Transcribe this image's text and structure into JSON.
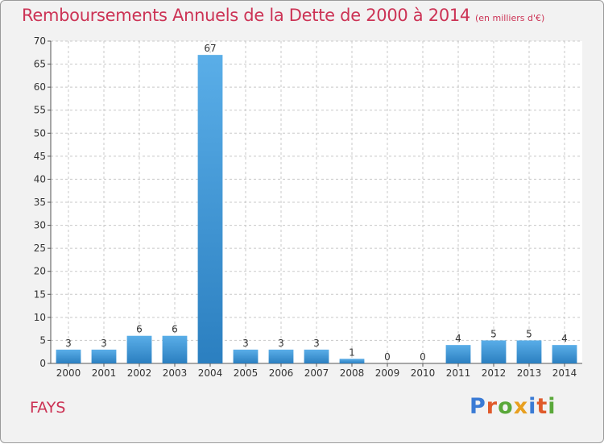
{
  "header": {
    "title": "Remboursements Annuels de la Dette de 2000 à 2014",
    "unit": "(en milliers d'€)"
  },
  "footer": {
    "commune": "FAYS",
    "brand_letters": [
      "P",
      "r",
      "o",
      "x",
      "i",
      "t",
      "i"
    ],
    "brand_colors": [
      "#3a7bd5",
      "#e05a2b",
      "#5aa83a",
      "#e8a020",
      "#3a7bd5",
      "#e05a2b",
      "#5aa83a"
    ]
  },
  "chart_data": {
    "type": "bar",
    "title": "Remboursements Annuels de la Dette de 2000 à 2014",
    "xlabel": "",
    "ylabel": "",
    "categories": [
      "2000",
      "2001",
      "2002",
      "2003",
      "2004",
      "2005",
      "2006",
      "2007",
      "2008",
      "2009",
      "2010",
      "2011",
      "2012",
      "2013",
      "2014"
    ],
    "values": [
      3,
      3,
      6,
      6,
      67,
      3,
      3,
      3,
      1,
      0,
      0,
      4,
      5,
      5,
      4
    ],
    "value_labels": [
      "3",
      "3",
      "6",
      "6",
      "67",
      "3",
      "3",
      "3",
      "1",
      "0",
      "0",
      "4",
      "5",
      "5",
      "4"
    ],
    "ylim": [
      0,
      70
    ],
    "yticks": [
      "0",
      "5",
      "10",
      "15",
      "20",
      "25",
      "30",
      "35",
      "40",
      "45",
      "50",
      "55",
      "60",
      "65",
      "70"
    ],
    "grid": true,
    "colors": {
      "bar_light": "#5aaee8",
      "bar_dark": "#2b7fc0",
      "text": "#333333",
      "grid": "#c8c8c8"
    }
  }
}
